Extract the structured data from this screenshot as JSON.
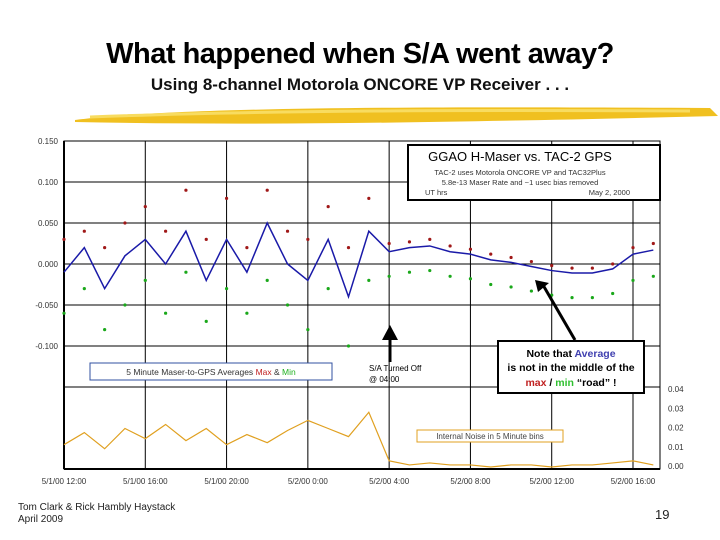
{
  "slide": {
    "title": "What happened when S/A went away?",
    "subtitle": "Using 8-channel Motorola ONCORE VP Receiver . . .",
    "footer_authors": "Tom Clark & Rick Hambly Haystack",
    "footer_date": "April 2009",
    "page_number": "19"
  },
  "chart_data": {
    "type": "line",
    "title": "GGAO H-Maser vs. TAC-2 GPS",
    "subtitle_lines": [
      "TAC-2 uses Motorola ONCORE VP and TAC32Plus",
      "5.8e-13 Maser Rate and ~1 usec bias removed"
    ],
    "xlabel": "UT hrs",
    "date_note": "May 2, 2000",
    "x_tick_labels": [
      "5/1/00 12:00",
      "5/1/00 16:00",
      "5/1/00 20:00",
      "5/2/00 0:00",
      "5/2/00 4:00",
      "5/2/00 8:00",
      "5/2/00 12:00",
      "5/2/00 16:00"
    ],
    "x_hours_from_start": [
      0,
      1,
      2,
      3,
      4,
      5,
      6,
      7,
      8,
      9,
      10,
      11,
      12,
      13,
      14,
      15,
      16,
      17,
      18,
      19,
      20,
      21,
      22,
      23,
      24,
      25,
      26,
      27,
      28,
      29
    ],
    "y_left": {
      "ylim": [
        -0.15,
        0.15
      ],
      "tick_labels": [
        "0.150",
        "0.100",
        "0.050",
        "0.000",
        "-0.050",
        "-0.100"
      ]
    },
    "y_right": {
      "ylim": [
        0,
        0.04
      ],
      "tick_labels": [
        "0.04",
        "0.03",
        "0.02",
        "0.01",
        "0.00"
      ]
    },
    "grid": true,
    "series": [
      {
        "name": "5 Minute Maser-to-GPS Averages",
        "color": "#1a1aa8",
        "axis": "left",
        "values": [
          -0.01,
          0.02,
          -0.03,
          0.01,
          0.03,
          0.0,
          0.04,
          -0.02,
          0.03,
          -0.01,
          0.05,
          0.0,
          -0.02,
          0.03,
          -0.04,
          0.04,
          0.015,
          0.02,
          0.022,
          0.015,
          0.012,
          0.005,
          0.002,
          -0.003,
          -0.008,
          -0.011,
          -0.011,
          -0.006,
          0.012,
          0.017
        ]
      },
      {
        "name": "Max",
        "color": "#a01818",
        "axis": "left",
        "values": [
          0.03,
          0.04,
          0.02,
          0.05,
          0.07,
          0.04,
          0.09,
          0.03,
          0.08,
          0.02,
          0.09,
          0.04,
          0.03,
          0.07,
          0.02,
          0.08,
          0.025,
          0.027,
          0.03,
          0.022,
          0.018,
          0.012,
          0.008,
          0.003,
          -0.002,
          -0.005,
          -0.005,
          0.0,
          0.02,
          0.025
        ]
      },
      {
        "name": "Min",
        "color": "#1aa81a",
        "axis": "left",
        "values": [
          -0.06,
          -0.03,
          -0.08,
          -0.05,
          -0.02,
          -0.06,
          -0.01,
          -0.07,
          -0.03,
          -0.06,
          -0.02,
          -0.05,
          -0.08,
          -0.03,
          -0.1,
          -0.02,
          -0.015,
          -0.01,
          -0.008,
          -0.015,
          -0.018,
          -0.025,
          -0.028,
          -0.033,
          -0.038,
          -0.041,
          -0.041,
          -0.036,
          -0.02,
          -0.015
        ]
      },
      {
        "name": "Internal Noise in 5 Minute bins",
        "color": "#e0a020",
        "axis": "right",
        "values": [
          0.012,
          0.018,
          0.01,
          0.02,
          0.015,
          0.022,
          0.014,
          0.02,
          0.012,
          0.017,
          0.013,
          0.019,
          0.024,
          0.02,
          0.016,
          0.028,
          0.004,
          0.002,
          0.003,
          0.002,
          0.002,
          0.001,
          0.002,
          0.002,
          0.001,
          0.002,
          0.002,
          0.003,
          0.004,
          0.002
        ]
      }
    ],
    "legend_label": "5 Minute Maser-to-GPS Averages",
    "legend_max": "Max",
    "legend_and": "&",
    "legend_min": "Min",
    "noise_legend": "Internal Noise in 5 Minute bins",
    "sa_annotation_line1": "S/A Turned Off",
    "sa_annotation_line2": "@ 04:00",
    "note": {
      "p1": "Note that ",
      "avg": "Average",
      "p2": " is not in the middle of the ",
      "max": "max",
      "slash": " / ",
      "min": "min",
      "p3": " “road” !"
    }
  }
}
